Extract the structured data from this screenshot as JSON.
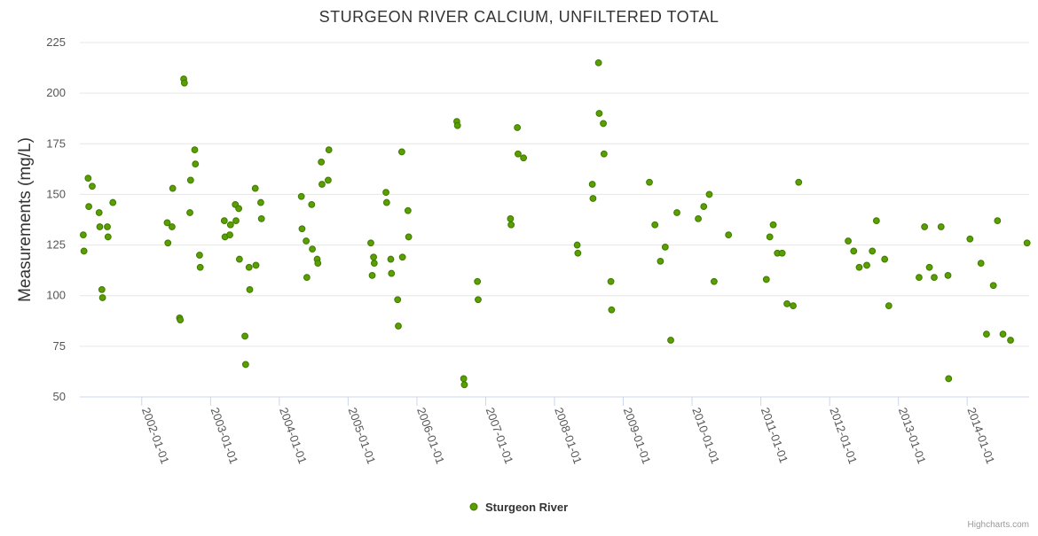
{
  "chart_data": {
    "type": "scatter",
    "title": "STURGEON RIVER CALCIUM, UNFILTERED TOTAL",
    "xlabel": "",
    "ylabel": "Measurements (mg/L)",
    "ylim": [
      50,
      225
    ],
    "yticks": [
      50,
      75,
      100,
      125,
      150,
      175,
      200,
      225
    ],
    "xlim": [
      2001.1,
      2014.9
    ],
    "xticks": [
      {
        "value": 2002.0,
        "label": "2002-01-01"
      },
      {
        "value": 2003.0,
        "label": "2003-01-01"
      },
      {
        "value": 2004.0,
        "label": "2004-01-01"
      },
      {
        "value": 2005.0,
        "label": "2005-01-01"
      },
      {
        "value": 2006.0,
        "label": "2006-01-01"
      },
      {
        "value": 2007.0,
        "label": "2007-01-01"
      },
      {
        "value": 2008.0,
        "label": "2008-01-01"
      },
      {
        "value": 2009.0,
        "label": "2009-01-01"
      },
      {
        "value": 2010.0,
        "label": "2010-01-01"
      },
      {
        "value": 2011.0,
        "label": "2011-01-01"
      },
      {
        "value": 2012.0,
        "label": "2012-01-01"
      },
      {
        "value": 2013.0,
        "label": "2013-01-01"
      },
      {
        "value": 2014.0,
        "label": "2014-01-01"
      }
    ],
    "grid": true,
    "legend_position": "bottom-center",
    "series": [
      {
        "name": "Sturgeon River",
        "color": "#5a9e00",
        "stroke": "#3f7a00",
        "points": [
          [
            2001.15,
            130
          ],
          [
            2001.16,
            122
          ],
          [
            2001.22,
            158
          ],
          [
            2001.23,
            144
          ],
          [
            2001.28,
            154
          ],
          [
            2001.38,
            141
          ],
          [
            2001.39,
            134
          ],
          [
            2001.42,
            103
          ],
          [
            2001.43,
            99
          ],
          [
            2001.5,
            134
          ],
          [
            2001.51,
            129
          ],
          [
            2001.58,
            146
          ],
          [
            2002.37,
            136
          ],
          [
            2002.38,
            126
          ],
          [
            2002.44,
            134
          ],
          [
            2002.45,
            153
          ],
          [
            2002.55,
            89
          ],
          [
            2002.56,
            88
          ],
          [
            2002.61,
            207
          ],
          [
            2002.62,
            205
          ],
          [
            2002.7,
            141
          ],
          [
            2002.71,
            157
          ],
          [
            2002.77,
            172
          ],
          [
            2002.78,
            165
          ],
          [
            2002.84,
            120
          ],
          [
            2002.85,
            114
          ],
          [
            2003.2,
            137
          ],
          [
            2003.21,
            129
          ],
          [
            2003.28,
            130
          ],
          [
            2003.29,
            135
          ],
          [
            2003.36,
            145
          ],
          [
            2003.37,
            137
          ],
          [
            2003.41,
            143
          ],
          [
            2003.42,
            118
          ],
          [
            2003.5,
            80
          ],
          [
            2003.51,
            66
          ],
          [
            2003.56,
            114
          ],
          [
            2003.57,
            103
          ],
          [
            2003.65,
            153
          ],
          [
            2003.66,
            115
          ],
          [
            2003.73,
            146
          ],
          [
            2003.74,
            138
          ],
          [
            2004.32,
            149
          ],
          [
            2004.33,
            133
          ],
          [
            2004.39,
            127
          ],
          [
            2004.4,
            109
          ],
          [
            2004.47,
            145
          ],
          [
            2004.48,
            123
          ],
          [
            2004.55,
            118
          ],
          [
            2004.56,
            116
          ],
          [
            2004.61,
            166
          ],
          [
            2004.62,
            155
          ],
          [
            2004.71,
            157
          ],
          [
            2004.72,
            172
          ],
          [
            2005.33,
            126
          ],
          [
            2005.35,
            110
          ],
          [
            2005.37,
            119
          ],
          [
            2005.38,
            116
          ],
          [
            2005.55,
            151
          ],
          [
            2005.56,
            146
          ],
          [
            2005.62,
            118
          ],
          [
            2005.63,
            111
          ],
          [
            2005.72,
            98
          ],
          [
            2005.73,
            85
          ],
          [
            2005.78,
            171
          ],
          [
            2005.79,
            119
          ],
          [
            2005.87,
            142
          ],
          [
            2005.88,
            129
          ],
          [
            2006.58,
            186
          ],
          [
            2006.59,
            184
          ],
          [
            2006.68,
            59
          ],
          [
            2006.69,
            56
          ],
          [
            2006.88,
            107
          ],
          [
            2006.89,
            98
          ],
          [
            2007.36,
            138
          ],
          [
            2007.37,
            135
          ],
          [
            2007.46,
            183
          ],
          [
            2007.47,
            170
          ],
          [
            2007.55,
            168
          ],
          [
            2008.33,
            125
          ],
          [
            2008.34,
            121
          ],
          [
            2008.55,
            155
          ],
          [
            2008.56,
            148
          ],
          [
            2008.64,
            215
          ],
          [
            2008.65,
            190
          ],
          [
            2008.71,
            185
          ],
          [
            2008.72,
            170
          ],
          [
            2008.82,
            107
          ],
          [
            2008.83,
            93
          ],
          [
            2009.38,
            156
          ],
          [
            2009.46,
            135
          ],
          [
            2009.54,
            117
          ],
          [
            2009.61,
            124
          ],
          [
            2009.69,
            78
          ],
          [
            2009.78,
            141
          ],
          [
            2010.09,
            138
          ],
          [
            2010.17,
            144
          ],
          [
            2010.25,
            150
          ],
          [
            2010.32,
            107
          ],
          [
            2010.53,
            130
          ],
          [
            2011.08,
            108
          ],
          [
            2011.13,
            129
          ],
          [
            2011.18,
            135
          ],
          [
            2011.24,
            121
          ],
          [
            2011.31,
            121
          ],
          [
            2011.38,
            96
          ],
          [
            2011.47,
            95
          ],
          [
            2011.55,
            156
          ],
          [
            2012.27,
            127
          ],
          [
            2012.35,
            122
          ],
          [
            2012.43,
            114
          ],
          [
            2012.54,
            115
          ],
          [
            2012.62,
            122
          ],
          [
            2012.68,
            137
          ],
          [
            2012.8,
            118
          ],
          [
            2012.86,
            95
          ],
          [
            2013.3,
            109
          ],
          [
            2013.38,
            134
          ],
          [
            2013.45,
            114
          ],
          [
            2013.52,
            109
          ],
          [
            2013.62,
            134
          ],
          [
            2013.72,
            110
          ],
          [
            2013.73,
            59
          ],
          [
            2014.04,
            128
          ],
          [
            2014.2,
            116
          ],
          [
            2014.28,
            81
          ],
          [
            2014.38,
            105
          ],
          [
            2014.44,
            137
          ],
          [
            2014.52,
            81
          ],
          [
            2014.63,
            78
          ],
          [
            2014.87,
            126
          ]
        ]
      }
    ]
  },
  "credits": "Highcharts.com"
}
